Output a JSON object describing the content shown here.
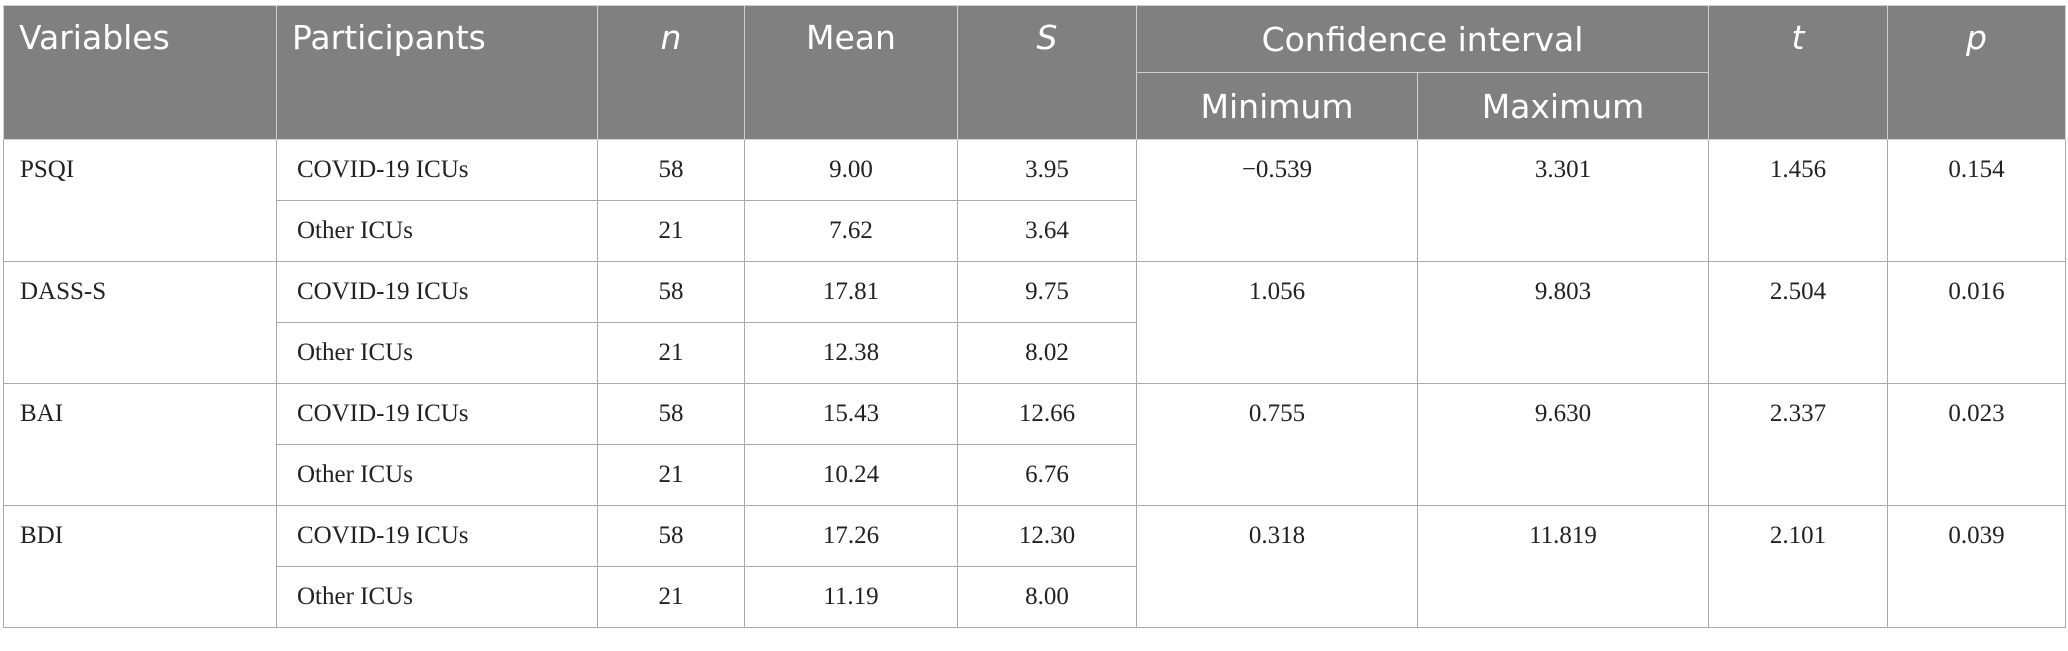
{
  "header": {
    "variables": "Variables",
    "participants": "Participants",
    "n": "n",
    "mean": "Mean",
    "s": "S",
    "ci": "Confidence interval",
    "minimum": "Minimum",
    "maximum": "Maximum",
    "t": "t",
    "p": "p"
  },
  "rows": [
    {
      "variable": "PSQI",
      "ci_min": "−0.539",
      "ci_max": "3.301",
      "t": "1.456",
      "p": "0.154",
      "groups": [
        {
          "participants": "COVID-19 ICUs",
          "n": "58",
          "mean": "9.00",
          "s": "3.95"
        },
        {
          "participants": "Other ICUs",
          "n": "21",
          "mean": "7.62",
          "s": "3.64"
        }
      ]
    },
    {
      "variable": "DASS-S",
      "ci_min": "1.056",
      "ci_max": "9.803",
      "t": "2.504",
      "p": "0.016",
      "groups": [
        {
          "participants": "COVID-19 ICUs",
          "n": "58",
          "mean": "17.81",
          "s": "9.75"
        },
        {
          "participants": "Other ICUs",
          "n": "21",
          "mean": "12.38",
          "s": "8.02"
        }
      ]
    },
    {
      "variable": "BAI",
      "ci_min": "0.755",
      "ci_max": "9.630",
      "t": "2.337",
      "p": "0.023",
      "groups": [
        {
          "participants": "COVID-19 ICUs",
          "n": "58",
          "mean": "15.43",
          "s": "12.66"
        },
        {
          "participants": "Other ICUs",
          "n": "21",
          "mean": "10.24",
          "s": "6.76"
        }
      ]
    },
    {
      "variable": "BDI",
      "ci_min": "0.318",
      "ci_max": "11.819",
      "t": "2.101",
      "p": "0.039",
      "groups": [
        {
          "participants": "COVID-19 ICUs",
          "n": "58",
          "mean": "17.26",
          "s": "12.30"
        },
        {
          "participants": "Other ICUs",
          "n": "21",
          "mean": "11.19",
          "s": "8.00"
        }
      ]
    }
  ]
}
